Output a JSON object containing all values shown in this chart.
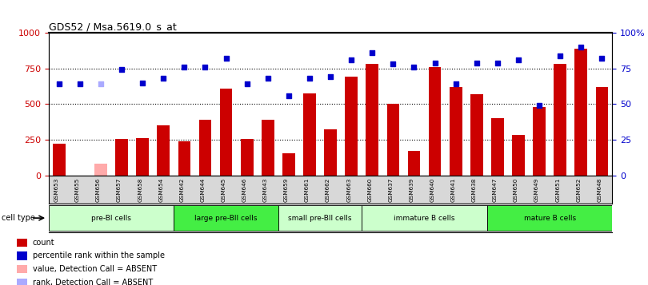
{
  "title": "GDS52 / Msa.5619.0_s_at",
  "samples": [
    "GSM653",
    "GSM655",
    "GSM656",
    "GSM657",
    "GSM658",
    "GSM654",
    "GSM642",
    "GSM644",
    "GSM645",
    "GSM646",
    "GSM643",
    "GSM659",
    "GSM661",
    "GSM662",
    "GSM663",
    "GSM660",
    "GSM637",
    "GSM639",
    "GSM640",
    "GSM641",
    "GSM638",
    "GSM647",
    "GSM650",
    "GSM649",
    "GSM651",
    "GSM652",
    "GSM648"
  ],
  "bar_values": [
    220,
    0,
    80,
    255,
    260,
    350,
    240,
    390,
    610,
    255,
    390,
    155,
    575,
    325,
    690,
    780,
    500,
    170,
    760,
    620,
    570,
    400,
    285,
    480,
    780,
    890,
    620
  ],
  "bar_absent": [
    false,
    true,
    true,
    false,
    false,
    false,
    false,
    false,
    false,
    false,
    false,
    false,
    false,
    false,
    false,
    false,
    false,
    false,
    false,
    false,
    false,
    false,
    false,
    false,
    false,
    false,
    false
  ],
  "scatter_values": [
    64,
    64,
    64,
    74,
    65,
    68,
    76,
    76,
    82,
    64,
    68,
    56,
    68,
    69,
    81,
    86,
    78,
    76,
    79,
    64,
    79,
    79,
    81,
    49,
    84,
    90,
    82
  ],
  "scatter_absent": [
    false,
    false,
    true,
    false,
    false,
    false,
    false,
    false,
    false,
    false,
    false,
    false,
    false,
    false,
    false,
    false,
    false,
    false,
    false,
    false,
    false,
    false,
    false,
    false,
    false,
    false,
    false
  ],
  "cell_groups": [
    {
      "label": "pre-BI cells",
      "start": 0,
      "end": 6,
      "color": "#ccffcc"
    },
    {
      "label": "large pre-BII cells",
      "start": 6,
      "end": 11,
      "color": "#44ee44"
    },
    {
      "label": "small pre-BII cells",
      "start": 11,
      "end": 15,
      "color": "#ccffcc"
    },
    {
      "label": "immature B cells",
      "start": 15,
      "end": 21,
      "color": "#ccffcc"
    },
    {
      "label": "mature B cells",
      "start": 21,
      "end": 27,
      "color": "#44ee44"
    }
  ],
  "ylim_left": [
    0,
    1000
  ],
  "ylim_right": [
    0,
    100
  ],
  "yticks_left": [
    0,
    250,
    500,
    750,
    1000
  ],
  "yticks_right": [
    0,
    25,
    50,
    75,
    100
  ],
  "ytick_labels_right": [
    "0",
    "25",
    "50",
    "75",
    "100%"
  ],
  "bar_color": "#cc0000",
  "bar_absent_color": "#ffaaaa",
  "scatter_color": "#0000cc",
  "scatter_absent_color": "#aaaaff",
  "tick_label_color_left": "#cc0000",
  "tick_label_color_right": "#0000cc",
  "legend_items": [
    {
      "label": "count",
      "color": "#cc0000"
    },
    {
      "label": "percentile rank within the sample",
      "color": "#0000cc"
    },
    {
      "label": "value, Detection Call = ABSENT",
      "color": "#ffaaaa"
    },
    {
      "label": "rank, Detection Call = ABSENT",
      "color": "#aaaaff"
    }
  ],
  "cell_type_label": "cell type"
}
